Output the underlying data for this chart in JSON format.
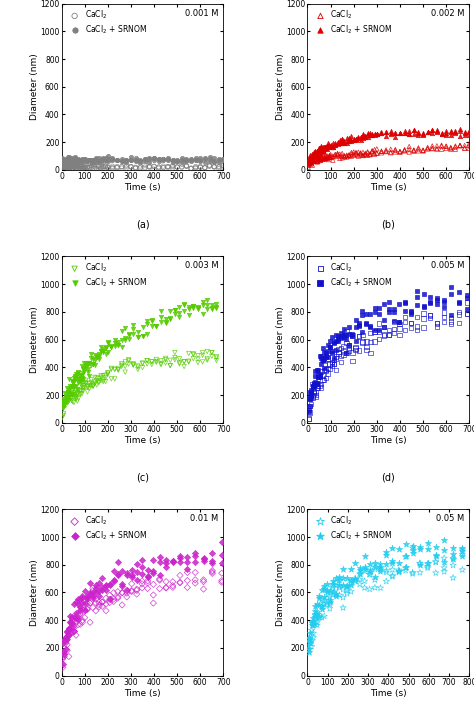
{
  "panels": [
    {
      "label": "a",
      "concentration": "0.001 M",
      "color": "#808080",
      "marker1": "o",
      "marker2": "o",
      "filled1": false,
      "filled2": true,
      "xlim": [
        0,
        700
      ],
      "ylim": [
        0,
        1200
      ],
      "xticks": [
        0,
        100,
        200,
        300,
        400,
        500,
        600,
        700
      ],
      "yticks": [
        0,
        200,
        400,
        600,
        800,
        1000,
        1200
      ],
      "data1_x": [
        3,
        6,
        9,
        12,
        15,
        18,
        21,
        24,
        27,
        30,
        33,
        36,
        39,
        42,
        45,
        48,
        51,
        54,
        57,
        60,
        65,
        70,
        75,
        80,
        85,
        90,
        95,
        100,
        110,
        120,
        130,
        140,
        150,
        160,
        170,
        180,
        190,
        200,
        220,
        240,
        260,
        280,
        300,
        320,
        340,
        360,
        380,
        400,
        420,
        440,
        460,
        480,
        500,
        520,
        540,
        560,
        580,
        600,
        620,
        640,
        660,
        680,
        700
      ],
      "data1_y": [
        20,
        18,
        22,
        19,
        25,
        18,
        21,
        17,
        22,
        19,
        18,
        22,
        20,
        17,
        21,
        19,
        18,
        22,
        20,
        19,
        20,
        18,
        22,
        19,
        21,
        18,
        20,
        22,
        19,
        21,
        18,
        20,
        22,
        19,
        21,
        18,
        20,
        22,
        19,
        21,
        18,
        20,
        22,
        19,
        21,
        18,
        20,
        22,
        19,
        21,
        18,
        20,
        22,
        19,
        21,
        18,
        20,
        22,
        19,
        21,
        18,
        20,
        22
      ],
      "data2_x": [
        3,
        6,
        9,
        12,
        15,
        18,
        21,
        24,
        27,
        30,
        33,
        36,
        39,
        42,
        45,
        48,
        51,
        54,
        57,
        60,
        65,
        70,
        75,
        80,
        85,
        90,
        95,
        100,
        110,
        120,
        130,
        140,
        150,
        160,
        170,
        180,
        190,
        200,
        220,
        240,
        260,
        280,
        300,
        320,
        340,
        360,
        380,
        400,
        420,
        440,
        460,
        480,
        500,
        520,
        540,
        560,
        580,
        600,
        620,
        640,
        660,
        680,
        700
      ],
      "data2_y": [
        65,
        70,
        68,
        72,
        68,
        73,
        70,
        68,
        72,
        75,
        70,
        73,
        68,
        72,
        75,
        70,
        72,
        75,
        70,
        73,
        72,
        70,
        73,
        70,
        72,
        70,
        72,
        73,
        72,
        75,
        72,
        70,
        73,
        72,
        73,
        72,
        70,
        73,
        72,
        73,
        72,
        70,
        73,
        72,
        73,
        72,
        70,
        73,
        72,
        73,
        72,
        70,
        73,
        72,
        73,
        72,
        70,
        73,
        72,
        73,
        72,
        70,
        73
      ]
    },
    {
      "label": "b",
      "concentration": "0.002 M",
      "color": "#dd0000",
      "marker1": "^",
      "marker2": "^",
      "filled1": false,
      "filled2": true,
      "xlim": [
        0,
        700
      ],
      "ylim": [
        0,
        1200
      ],
      "xticks": [
        0,
        100,
        200,
        300,
        400,
        500,
        600,
        700
      ],
      "yticks": [
        0,
        200,
        400,
        600,
        800,
        1000,
        1200
      ],
      "data1_x": [
        3,
        6,
        9,
        12,
        15,
        18,
        21,
        24,
        27,
        30,
        33,
        36,
        39,
        42,
        45,
        48,
        51,
        54,
        57,
        60,
        65,
        70,
        75,
        80,
        85,
        90,
        95,
        100,
        110,
        120,
        130,
        140,
        150,
        160,
        170,
        180,
        190,
        200,
        210,
        220,
        230,
        240,
        250,
        260,
        270,
        280,
        290,
        300,
        320,
        340,
        360,
        380,
        400,
        420,
        440,
        460,
        480,
        500,
        520,
        540,
        560,
        580,
        600,
        620,
        640,
        660,
        680,
        700
      ],
      "data1_y": [
        40,
        48,
        52,
        55,
        58,
        60,
        62,
        65,
        67,
        70,
        68,
        72,
        74,
        76,
        75,
        78,
        80,
        82,
        80,
        84,
        85,
        87,
        88,
        90,
        91,
        92,
        94,
        95,
        98,
        100,
        102,
        104,
        106,
        107,
        108,
        110,
        111,
        112,
        114,
        115,
        116,
        118,
        119,
        120,
        122,
        124,
        123,
        125,
        128,
        130,
        133,
        135,
        138,
        140,
        143,
        145,
        148,
        150,
        153,
        155,
        158,
        160,
        162,
        164,
        166,
        168,
        170,
        172
      ],
      "data2_x": [
        3,
        6,
        9,
        12,
        15,
        18,
        21,
        24,
        27,
        30,
        33,
        36,
        39,
        42,
        45,
        48,
        51,
        54,
        57,
        60,
        65,
        70,
        75,
        80,
        85,
        90,
        95,
        100,
        110,
        120,
        130,
        140,
        150,
        160,
        170,
        180,
        190,
        200,
        210,
        220,
        230,
        240,
        250,
        260,
        270,
        280,
        290,
        300,
        320,
        340,
        360,
        380,
        400,
        420,
        440,
        460,
        480,
        500,
        520,
        540,
        560,
        580,
        600,
        620,
        640,
        660,
        680,
        700
      ],
      "data2_y": [
        55,
        65,
        75,
        80,
        88,
        95,
        100,
        105,
        110,
        115,
        118,
        122,
        125,
        128,
        132,
        135,
        138,
        142,
        145,
        148,
        152,
        155,
        160,
        163,
        165,
        168,
        172,
        175,
        180,
        185,
        190,
        195,
        200,
        205,
        210,
        215,
        218,
        220,
        225,
        228,
        232,
        235,
        240,
        245,
        248,
        250,
        253,
        255,
        260,
        258,
        263,
        260,
        265,
        262,
        265,
        270,
        268,
        272,
        270,
        275,
        272,
        268,
        270,
        275,
        272,
        270,
        268,
        272
      ]
    },
    {
      "label": "c",
      "concentration": "0.003 M",
      "color": "#55cc00",
      "marker1": "v",
      "marker2": "v",
      "filled1": false,
      "filled2": true,
      "xlim": [
        0,
        700
      ],
      "ylim": [
        0,
        1200
      ],
      "xticks": [
        0,
        100,
        200,
        300,
        400,
        500,
        600,
        700
      ],
      "yticks": [
        0,
        200,
        400,
        600,
        800,
        1000,
        1200
      ],
      "data1_x": [
        3,
        8,
        13,
        18,
        23,
        28,
        33,
        38,
        43,
        48,
        53,
        58,
        63,
        68,
        73,
        78,
        83,
        88,
        93,
        98,
        105,
        112,
        120,
        128,
        136,
        144,
        152,
        160,
        170,
        180,
        190,
        200,
        215,
        230,
        245,
        260,
        275,
        290,
        310,
        330,
        350,
        370,
        390,
        410,
        430,
        450,
        470,
        490,
        510,
        530,
        550,
        570,
        590,
        610,
        630,
        650,
        670
      ],
      "data1_y": [
        80,
        100,
        118,
        132,
        145,
        155,
        165,
        175,
        183,
        190,
        198,
        205,
        212,
        218,
        224,
        230,
        235,
        242,
        248,
        253,
        260,
        268,
        276,
        283,
        292,
        300,
        308,
        316,
        325,
        334,
        342,
        350,
        362,
        373,
        382,
        392,
        400,
        408,
        415,
        422,
        428,
        433,
        438,
        442,
        446,
        450,
        453,
        457,
        460,
        462,
        465,
        467,
        468,
        470,
        471,
        472,
        473
      ],
      "data2_x": [
        3,
        8,
        13,
        18,
        23,
        28,
        33,
        38,
        43,
        48,
        53,
        58,
        63,
        68,
        73,
        78,
        83,
        88,
        93,
        98,
        105,
        112,
        120,
        128,
        136,
        144,
        152,
        160,
        170,
        180,
        190,
        200,
        215,
        230,
        245,
        260,
        275,
        290,
        310,
        330,
        350,
        370,
        390,
        410,
        430,
        450,
        470,
        490,
        510,
        530,
        550,
        570,
        590,
        610,
        630,
        650,
        670
      ],
      "data2_y": [
        100,
        130,
        155,
        178,
        198,
        215,
        232,
        248,
        262,
        275,
        288,
        300,
        312,
        323,
        333,
        343,
        353,
        362,
        372,
        380,
        392,
        405,
        418,
        432,
        446,
        460,
        472,
        485,
        500,
        515,
        528,
        542,
        560,
        578,
        593,
        608,
        622,
        636,
        650,
        665,
        678,
        690,
        705,
        718,
        730,
        742,
        753,
        765,
        776,
        787,
        797,
        808,
        818,
        828,
        838,
        848,
        855
      ]
    },
    {
      "label": "d",
      "concentration": "0.005 M",
      "color": "#1111cc",
      "marker1": "s",
      "marker2": "s",
      "filled1": false,
      "filled2": true,
      "xlim": [
        0,
        700
      ],
      "ylim": [
        0,
        1200
      ],
      "xticks": [
        0,
        100,
        200,
        300,
        400,
        500,
        600,
        700
      ],
      "yticks": [
        0,
        200,
        400,
        600,
        800,
        1000,
        1200
      ],
      "data1_x": [
        5,
        10,
        16,
        22,
        28,
        34,
        40,
        46,
        52,
        58,
        65,
        72,
        80,
        88,
        96,
        105,
        114,
        124,
        134,
        145,
        156,
        168,
        180,
        194,
        208,
        223,
        238,
        255,
        272,
        290,
        310,
        330,
        352,
        374,
        398,
        422,
        448,
        474,
        502,
        530,
        560,
        590,
        622,
        655,
        690
      ],
      "data1_y": [
        80,
        120,
        155,
        185,
        210,
        235,
        258,
        278,
        298,
        316,
        335,
        354,
        370,
        388,
        405,
        422,
        438,
        455,
        470,
        486,
        500,
        515,
        528,
        542,
        555,
        568,
        580,
        593,
        605,
        618,
        630,
        642,
        655,
        666,
        678,
        688,
        698,
        708,
        718,
        728,
        737,
        746,
        755,
        763,
        772
      ],
      "data2_x": [
        5,
        10,
        16,
        22,
        28,
        34,
        40,
        46,
        52,
        58,
        65,
        72,
        80,
        88,
        96,
        105,
        114,
        124,
        134,
        145,
        156,
        168,
        180,
        194,
        208,
        223,
        238,
        255,
        272,
        290,
        310,
        330,
        352,
        374,
        398,
        422,
        448,
        474,
        502,
        530,
        560,
        590,
        622,
        655,
        690
      ],
      "data2_y": [
        130,
        185,
        230,
        268,
        300,
        332,
        360,
        385,
        408,
        430,
        452,
        472,
        492,
        511,
        530,
        548,
        565,
        582,
        598,
        614,
        628,
        643,
        656,
        670,
        684,
        697,
        710,
        723,
        736,
        748,
        760,
        772,
        784,
        796,
        808,
        820,
        830,
        840,
        850,
        860,
        870,
        880,
        890,
        900,
        910
      ]
    },
    {
      "label": "e",
      "concentration": "0.01 M",
      "color": "#cc22cc",
      "marker1": "D",
      "marker2": "D",
      "filled1": false,
      "filled2": true,
      "xlim": [
        0,
        700
      ],
      "ylim": [
        0,
        1200
      ],
      "xticks": [
        0,
        100,
        200,
        300,
        400,
        500,
        600,
        700
      ],
      "yticks": [
        0,
        200,
        400,
        600,
        800,
        1000,
        1200
      ],
      "data1_x": [
        5,
        11,
        17,
        24,
        31,
        38,
        46,
        54,
        62,
        71,
        80,
        90,
        100,
        111,
        123,
        135,
        148,
        162,
        176,
        192,
        208,
        225,
        243,
        262,
        282,
        303,
        325,
        348,
        372,
        397,
        424,
        452,
        481,
        512,
        544,
        578,
        614,
        652,
        693
      ],
      "data1_y": [
        120,
        165,
        205,
        240,
        270,
        300,
        325,
        348,
        370,
        390,
        410,
        428,
        445,
        462,
        478,
        493,
        507,
        520,
        533,
        546,
        558,
        570,
        582,
        593,
        604,
        614,
        624,
        634,
        643,
        652,
        661,
        670,
        678,
        687,
        695,
        703,
        712,
        720,
        728
      ],
      "data2_x": [
        5,
        11,
        17,
        24,
        31,
        38,
        46,
        54,
        62,
        71,
        80,
        90,
        100,
        111,
        123,
        135,
        148,
        162,
        176,
        192,
        208,
        225,
        243,
        262,
        282,
        303,
        325,
        348,
        372,
        397,
        424,
        452,
        481,
        512,
        544,
        578,
        614,
        652,
        693
      ],
      "data2_y": [
        160,
        215,
        262,
        305,
        342,
        376,
        408,
        436,
        462,
        487,
        510,
        530,
        550,
        570,
        588,
        605,
        620,
        636,
        650,
        664,
        678,
        690,
        703,
        714,
        726,
        737,
        748,
        758,
        768,
        778,
        788,
        797,
        806,
        816,
        825,
        834,
        843,
        853,
        862
      ]
    },
    {
      "label": "f",
      "concentration": "0.05 M",
      "color": "#22ccee",
      "marker1": "*",
      "marker2": "*",
      "filled1": false,
      "filled2": true,
      "xlim": [
        0,
        800
      ],
      "ylim": [
        0,
        1200
      ],
      "xticks": [
        0,
        100,
        200,
        300,
        400,
        500,
        600,
        700,
        800
      ],
      "yticks": [
        0,
        200,
        400,
        600,
        800,
        1000,
        1200
      ],
      "data1_x": [
        5,
        12,
        20,
        29,
        38,
        48,
        59,
        71,
        83,
        96,
        110,
        125,
        141,
        158,
        176,
        195,
        215,
        236,
        258,
        282,
        307,
        333,
        361,
        390,
        420,
        452,
        485,
        520,
        556,
        594,
        634,
        676,
        720,
        766
      ],
      "data1_y": [
        180,
        240,
        295,
        340,
        378,
        413,
        445,
        473,
        500,
        524,
        546,
        566,
        585,
        602,
        618,
        633,
        648,
        661,
        674,
        686,
        698,
        709,
        720,
        730,
        740,
        750,
        759,
        768,
        777,
        786,
        795,
        804,
        812,
        820
      ],
      "data2_x": [
        5,
        12,
        20,
        29,
        38,
        48,
        59,
        71,
        83,
        96,
        110,
        125,
        141,
        158,
        176,
        195,
        215,
        236,
        258,
        282,
        307,
        333,
        361,
        390,
        420,
        452,
        485,
        520,
        556,
        594,
        634,
        676,
        720,
        766
      ],
      "data2_y": [
        220,
        290,
        348,
        400,
        445,
        485,
        520,
        552,
        580,
        607,
        630,
        652,
        672,
        690,
        707,
        723,
        738,
        752,
        766,
        778,
        790,
        801,
        812,
        823,
        833,
        843,
        852,
        861,
        870,
        878,
        887,
        895,
        903,
        910
      ]
    }
  ]
}
